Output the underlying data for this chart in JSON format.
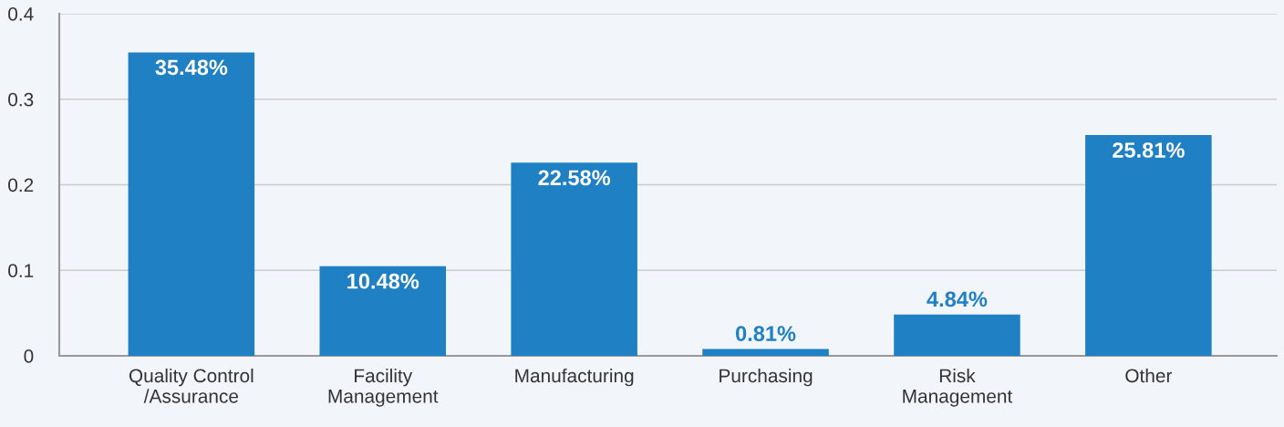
{
  "chart_data": {
    "type": "bar",
    "categories": [
      "Quality Control\n/Assurance",
      "Facility\nManagement",
      "Manufacturing",
      "Purchasing",
      "Risk\nManagement",
      "Other"
    ],
    "values": [
      0.3548,
      0.1048,
      0.2258,
      0.0081,
      0.0484,
      0.2581
    ],
    "value_labels": [
      "35.48%",
      "10.48%",
      "22.58%",
      "0.81%",
      "4.84%",
      "25.81%"
    ],
    "color": "#1f80c4",
    "ylim": [
      0,
      0.4
    ],
    "yticks": [
      0,
      0.1,
      0.2,
      0.3,
      0.4
    ],
    "grid": "y",
    "legend": false
  }
}
